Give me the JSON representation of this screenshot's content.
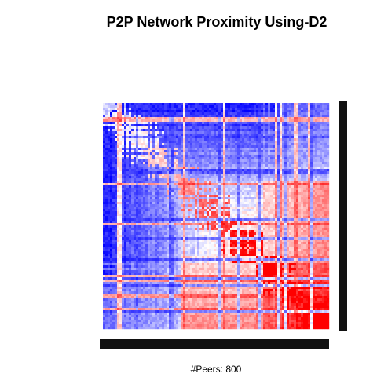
{
  "chart_data": {
    "type": "heatmap",
    "title": "P2P Network Proximity Using-D2",
    "xlabel": "#Peers:  800",
    "n_peers": 800,
    "color_low": "#0000ff",
    "color_mid": "#ffffff",
    "color_high": "#ff0000",
    "row_dendrogram_position": "right",
    "col_dendrogram_position": "bottom",
    "grid": false,
    "legend": "none"
  }
}
